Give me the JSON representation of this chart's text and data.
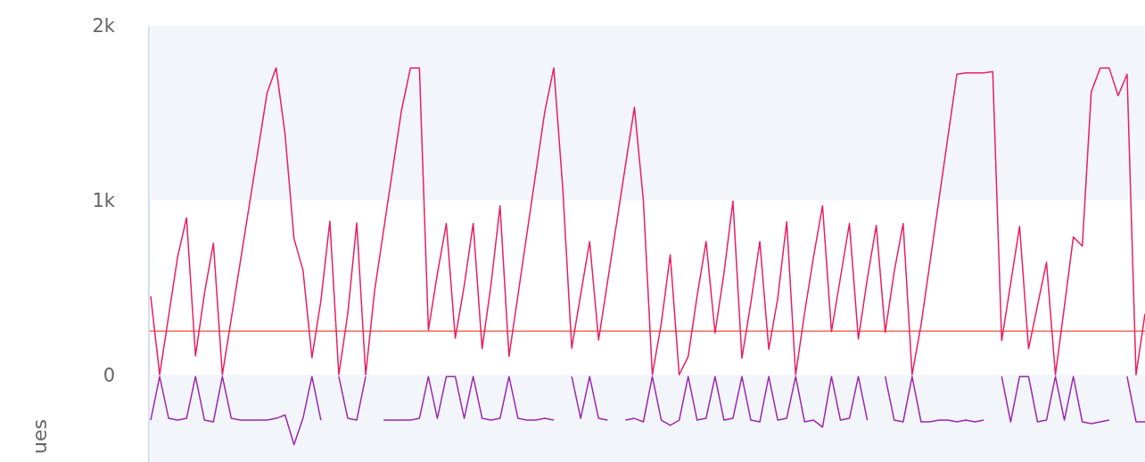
{
  "chart_data": {
    "type": "line",
    "ylabel": "ues",
    "categories": [
      null,
      null,
      null,
      null,
      null,
      null,
      null,
      null,
      null,
      null,
      null,
      null,
      null,
      null,
      null,
      null,
      null,
      null,
      null,
      null,
      null,
      null,
      null,
      null,
      null,
      null,
      null,
      null,
      null,
      null,
      null,
      null,
      null,
      null,
      null,
      null,
      null,
      null,
      null,
      null,
      null,
      null,
      null,
      null,
      null,
      null,
      null,
      null,
      null,
      null,
      null,
      null,
      null,
      null,
      null,
      null,
      null,
      null,
      null,
      null,
      null,
      null,
      null,
      null,
      null,
      null,
      null,
      null,
      null,
      null,
      null,
      null,
      null,
      null,
      null,
      null,
      null,
      null,
      null,
      null,
      null,
      null,
      null,
      null,
      null,
      null,
      null,
      null,
      null,
      null,
      null,
      null,
      null,
      null,
      null,
      null,
      null,
      null,
      null,
      null,
      null,
      null,
      null,
      null,
      null,
      null,
      null,
      null,
      null,
      null,
      null,
      null
    ],
    "series": [
      {
        "color": "#e91e63",
        "values": [
          450,
          0,
          337,
          674,
          900,
          108,
          467,
          754,
          0,
          323,
          647,
          970,
          1294,
          1617,
          1760,
          1379,
          780,
          600,
          98,
          425,
          880,
          0,
          350,
          870,
          0,
          483,
          828,
          1172,
          1517,
          1759,
          1759,
          256,
          578,
          867,
          210,
          510,
          867,
          150,
          520,
          969,
          105,
          456,
          808,
          1160,
          1510,
          1759,
          1070,
          153,
          459,
          764,
          200,
          533,
          866,
          1200,
          1533,
          1000,
          0,
          294,
          687,
          0,
          104,
          451,
          764,
          240,
          583,
          995,
          95,
          413,
          764,
          146,
          438,
          877,
          0,
          355,
          678,
          969,
          248,
          557,
          867,
          205,
          550,
          856,
          243,
          590,
          867,
          0,
          287,
          646,
          1005,
          1364,
          1723,
          1730,
          1730,
          1730,
          1738,
          196,
          523,
          851,
          149,
          397,
          645,
          0,
          390,
          790,
          738,
          1621,
          1759,
          1759,
          1600,
          1723,
          0,
          350
        ]
      },
      {
        "color": "#9c27b0",
        "values": [
          -260,
          -10,
          -250,
          -260,
          -250,
          -10,
          -260,
          -270,
          -10,
          -250,
          -260,
          -260,
          -260,
          -260,
          -250,
          -230,
          -400,
          -250,
          -10,
          -260,
          null,
          -10,
          -250,
          -260,
          -10,
          null,
          -260,
          -260,
          -260,
          -260,
          -250,
          -10,
          -250,
          -10,
          -10,
          -250,
          -10,
          -250,
          -260,
          -250,
          -10,
          -250,
          -260,
          -260,
          -250,
          -260,
          null,
          -10,
          -250,
          -10,
          -250,
          -260,
          null,
          -260,
          -250,
          -270,
          -10,
          -260,
          -290,
          -260,
          -10,
          -260,
          -250,
          -10,
          -260,
          -250,
          -10,
          -260,
          -270,
          -10,
          -260,
          -250,
          -10,
          -270,
          -260,
          -300,
          -10,
          -260,
          -250,
          -10,
          -260,
          null,
          -10,
          -260,
          -270,
          -10,
          -270,
          -270,
          -260,
          -260,
          -270,
          -260,
          -270,
          -260,
          null,
          -10,
          -270,
          -10,
          -10,
          -270,
          -260,
          -10,
          -260,
          -10,
          -270,
          -280,
          -270,
          -260,
          null,
          -10,
          -270,
          -270
        ]
      }
    ],
    "ylim": [
      -500,
      2000
    ],
    "yticks": [
      {
        "value": 0,
        "label": "0"
      },
      {
        "value": 1000,
        "label": "1k"
      },
      {
        "value": 2000,
        "label": "2k"
      }
    ],
    "tick_labels": "y",
    "ref_lines": [
      {
        "axis": "y",
        "value": 250,
        "color": "#f86b5b"
      }
    ],
    "bands": [
      {
        "axis": "y",
        "from": 1000,
        "to": 2000,
        "color": "#f2f5fa"
      },
      {
        "axis": "y",
        "from": -500,
        "to": 0,
        "color": "#f2f5fa"
      }
    ]
  }
}
